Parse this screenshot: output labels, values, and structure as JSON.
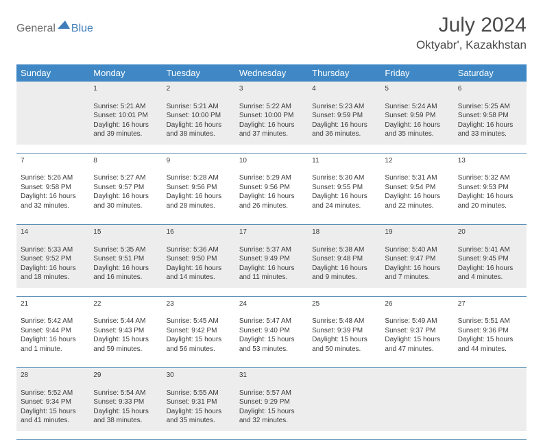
{
  "logo": {
    "text1": "General",
    "text2": "Blue",
    "blue": "#3f7db8",
    "gray": "#6b6b6b"
  },
  "title": "July 2024",
  "subtitle": "Oktyabr', Kazakhstan",
  "colors": {
    "header_bg": "#3f88c5",
    "header_text": "#ffffff",
    "gray_row": "#ededed",
    "rule": "#5a8fb5",
    "text": "#3a3a3a"
  },
  "weekdays": [
    "Sunday",
    "Monday",
    "Tuesday",
    "Wednesday",
    "Thursday",
    "Friday",
    "Saturday"
  ],
  "weeks": [
    [
      {
        "n": "",
        "d": ""
      },
      {
        "n": "1",
        "d": "Sunrise: 5:21 AM\nSunset: 10:01 PM\nDaylight: 16 hours and 39 minutes."
      },
      {
        "n": "2",
        "d": "Sunrise: 5:21 AM\nSunset: 10:00 PM\nDaylight: 16 hours and 38 minutes."
      },
      {
        "n": "3",
        "d": "Sunrise: 5:22 AM\nSunset: 10:00 PM\nDaylight: 16 hours and 37 minutes."
      },
      {
        "n": "4",
        "d": "Sunrise: 5:23 AM\nSunset: 9:59 PM\nDaylight: 16 hours and 36 minutes."
      },
      {
        "n": "5",
        "d": "Sunrise: 5:24 AM\nSunset: 9:59 PM\nDaylight: 16 hours and 35 minutes."
      },
      {
        "n": "6",
        "d": "Sunrise: 5:25 AM\nSunset: 9:58 PM\nDaylight: 16 hours and 33 minutes."
      }
    ],
    [
      {
        "n": "7",
        "d": "Sunrise: 5:26 AM\nSunset: 9:58 PM\nDaylight: 16 hours and 32 minutes."
      },
      {
        "n": "8",
        "d": "Sunrise: 5:27 AM\nSunset: 9:57 PM\nDaylight: 16 hours and 30 minutes."
      },
      {
        "n": "9",
        "d": "Sunrise: 5:28 AM\nSunset: 9:56 PM\nDaylight: 16 hours and 28 minutes."
      },
      {
        "n": "10",
        "d": "Sunrise: 5:29 AM\nSunset: 9:56 PM\nDaylight: 16 hours and 26 minutes."
      },
      {
        "n": "11",
        "d": "Sunrise: 5:30 AM\nSunset: 9:55 PM\nDaylight: 16 hours and 24 minutes."
      },
      {
        "n": "12",
        "d": "Sunrise: 5:31 AM\nSunset: 9:54 PM\nDaylight: 16 hours and 22 minutes."
      },
      {
        "n": "13",
        "d": "Sunrise: 5:32 AM\nSunset: 9:53 PM\nDaylight: 16 hours and 20 minutes."
      }
    ],
    [
      {
        "n": "14",
        "d": "Sunrise: 5:33 AM\nSunset: 9:52 PM\nDaylight: 16 hours and 18 minutes."
      },
      {
        "n": "15",
        "d": "Sunrise: 5:35 AM\nSunset: 9:51 PM\nDaylight: 16 hours and 16 minutes."
      },
      {
        "n": "16",
        "d": "Sunrise: 5:36 AM\nSunset: 9:50 PM\nDaylight: 16 hours and 14 minutes."
      },
      {
        "n": "17",
        "d": "Sunrise: 5:37 AM\nSunset: 9:49 PM\nDaylight: 16 hours and 11 minutes."
      },
      {
        "n": "18",
        "d": "Sunrise: 5:38 AM\nSunset: 9:48 PM\nDaylight: 16 hours and 9 minutes."
      },
      {
        "n": "19",
        "d": "Sunrise: 5:40 AM\nSunset: 9:47 PM\nDaylight: 16 hours and 7 minutes."
      },
      {
        "n": "20",
        "d": "Sunrise: 5:41 AM\nSunset: 9:45 PM\nDaylight: 16 hours and 4 minutes."
      }
    ],
    [
      {
        "n": "21",
        "d": "Sunrise: 5:42 AM\nSunset: 9:44 PM\nDaylight: 16 hours and 1 minute."
      },
      {
        "n": "22",
        "d": "Sunrise: 5:44 AM\nSunset: 9:43 PM\nDaylight: 15 hours and 59 minutes."
      },
      {
        "n": "23",
        "d": "Sunrise: 5:45 AM\nSunset: 9:42 PM\nDaylight: 15 hours and 56 minutes."
      },
      {
        "n": "24",
        "d": "Sunrise: 5:47 AM\nSunset: 9:40 PM\nDaylight: 15 hours and 53 minutes."
      },
      {
        "n": "25",
        "d": "Sunrise: 5:48 AM\nSunset: 9:39 PM\nDaylight: 15 hours and 50 minutes."
      },
      {
        "n": "26",
        "d": "Sunrise: 5:49 AM\nSunset: 9:37 PM\nDaylight: 15 hours and 47 minutes."
      },
      {
        "n": "27",
        "d": "Sunrise: 5:51 AM\nSunset: 9:36 PM\nDaylight: 15 hours and 44 minutes."
      }
    ],
    [
      {
        "n": "28",
        "d": "Sunrise: 5:52 AM\nSunset: 9:34 PM\nDaylight: 15 hours and 41 minutes."
      },
      {
        "n": "29",
        "d": "Sunrise: 5:54 AM\nSunset: 9:33 PM\nDaylight: 15 hours and 38 minutes."
      },
      {
        "n": "30",
        "d": "Sunrise: 5:55 AM\nSunset: 9:31 PM\nDaylight: 15 hours and 35 minutes."
      },
      {
        "n": "31",
        "d": "Sunrise: 5:57 AM\nSunset: 9:29 PM\nDaylight: 15 hours and 32 minutes."
      },
      {
        "n": "",
        "d": ""
      },
      {
        "n": "",
        "d": ""
      },
      {
        "n": "",
        "d": ""
      }
    ]
  ]
}
